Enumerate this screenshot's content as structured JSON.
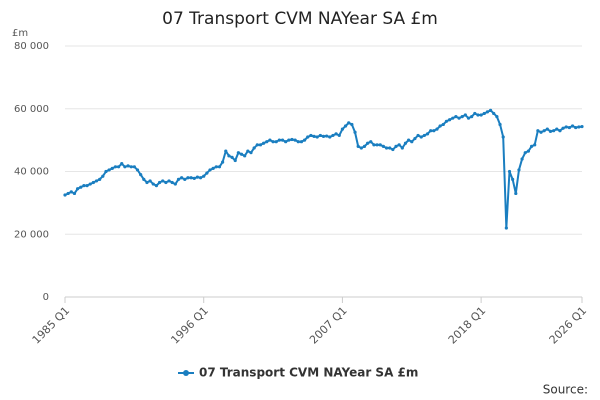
{
  "chart_data": {
    "type": "line",
    "title": "07 Transport CVM NAYear SA £m",
    "y_label": "£m",
    "source": "Source:",
    "categories": [
      "1985 Q1",
      null,
      null,
      null,
      null,
      null,
      null,
      null,
      null,
      null,
      null,
      null,
      null,
      null,
      null,
      null,
      null,
      null,
      null,
      null,
      null,
      null,
      null,
      null,
      null,
      null,
      null,
      null,
      null,
      null,
      null,
      null,
      null,
      null,
      null,
      null,
      null,
      null,
      null,
      null,
      null,
      null,
      null,
      null,
      "1996 Q1",
      null,
      null,
      null,
      null,
      null,
      null,
      null,
      null,
      null,
      null,
      null,
      null,
      null,
      null,
      null,
      null,
      null,
      null,
      null,
      null,
      null,
      null,
      null,
      null,
      null,
      null,
      null,
      null,
      null,
      null,
      null,
      null,
      null,
      null,
      null,
      null,
      null,
      null,
      null,
      null,
      null,
      null,
      null,
      "2007 Q1",
      null,
      null,
      null,
      null,
      null,
      null,
      null,
      null,
      null,
      null,
      null,
      null,
      null,
      null,
      null,
      null,
      null,
      null,
      null,
      null,
      null,
      null,
      null,
      null,
      null,
      null,
      null,
      null,
      null,
      null,
      null,
      null,
      null,
      null,
      null,
      null,
      null,
      null,
      null,
      null,
      null,
      null,
      null,
      "2018 Q1",
      null,
      null,
      null,
      null,
      null,
      null,
      null,
      null,
      null,
      null,
      null,
      null,
      null,
      null,
      null,
      null,
      null,
      null,
      null,
      null,
      null,
      null,
      null,
      null,
      null,
      null,
      null,
      null,
      null,
      null,
      null,
      "2026 Q1"
    ],
    "series": [
      {
        "name": "07 Transport CVM NAYear SA £m",
        "color": "#1a7ec0",
        "values": [
          32500,
          33000,
          33500,
          33000,
          34500,
          35000,
          35500,
          35500,
          36000,
          36500,
          37000,
          37500,
          38500,
          40000,
          40500,
          41000,
          41500,
          41500,
          42500,
          41500,
          41800,
          41500,
          41500,
          40500,
          39000,
          37500,
          36500,
          37000,
          36000,
          35500,
          36500,
          37000,
          36500,
          37000,
          36500,
          36000,
          37500,
          38000,
          37500,
          38000,
          38000,
          37800,
          38200,
          38000,
          38500,
          39500,
          40500,
          41000,
          41500,
          41500,
          43000,
          46500,
          45000,
          44500,
          43500,
          46000,
          45500,
          45000,
          46500,
          46000,
          47500,
          48500,
          48500,
          49000,
          49500,
          50000,
          49500,
          49500,
          50000,
          50000,
          49500,
          50000,
          50200,
          50000,
          49500,
          49500,
          50000,
          51000,
          51500,
          51200,
          51000,
          51500,
          51200,
          51300,
          51000,
          51500,
          52000,
          51500,
          53500,
          54500,
          55500,
          55000,
          52500,
          48000,
          47500,
          48000,
          49000,
          49500,
          48500,
          48500,
          48500,
          48000,
          47500,
          47500,
          47000,
          48000,
          48500,
          47500,
          49000,
          50000,
          49500,
          50500,
          51500,
          51000,
          51500,
          52000,
          53000,
          53000,
          53500,
          54500,
          55000,
          56000,
          56500,
          57000,
          57500,
          57000,
          57500,
          58000,
          57000,
          57500,
          58500,
          58000,
          58000,
          58500,
          59000,
          59500,
          58500,
          57500,
          55000,
          51000,
          22000,
          40000,
          37500,
          33000,
          40500,
          44000,
          46000,
          46500,
          48000,
          48500,
          53000,
          52500,
          53000,
          53500,
          52800,
          53000,
          53500,
          53000,
          53800,
          54200,
          54000,
          54500,
          54000,
          54200,
          54300
        ]
      }
    ],
    "ylim": [
      0,
      80000
    ],
    "yticks": [
      0,
      {
        "value": 20000,
        "label": "20 000"
      },
      {
        "value": 40000,
        "label": "40 000"
      },
      {
        "value": 60000,
        "label": "60 000"
      },
      {
        "value": 80000,
        "label": "80 000"
      }
    ],
    "grid": true
  }
}
